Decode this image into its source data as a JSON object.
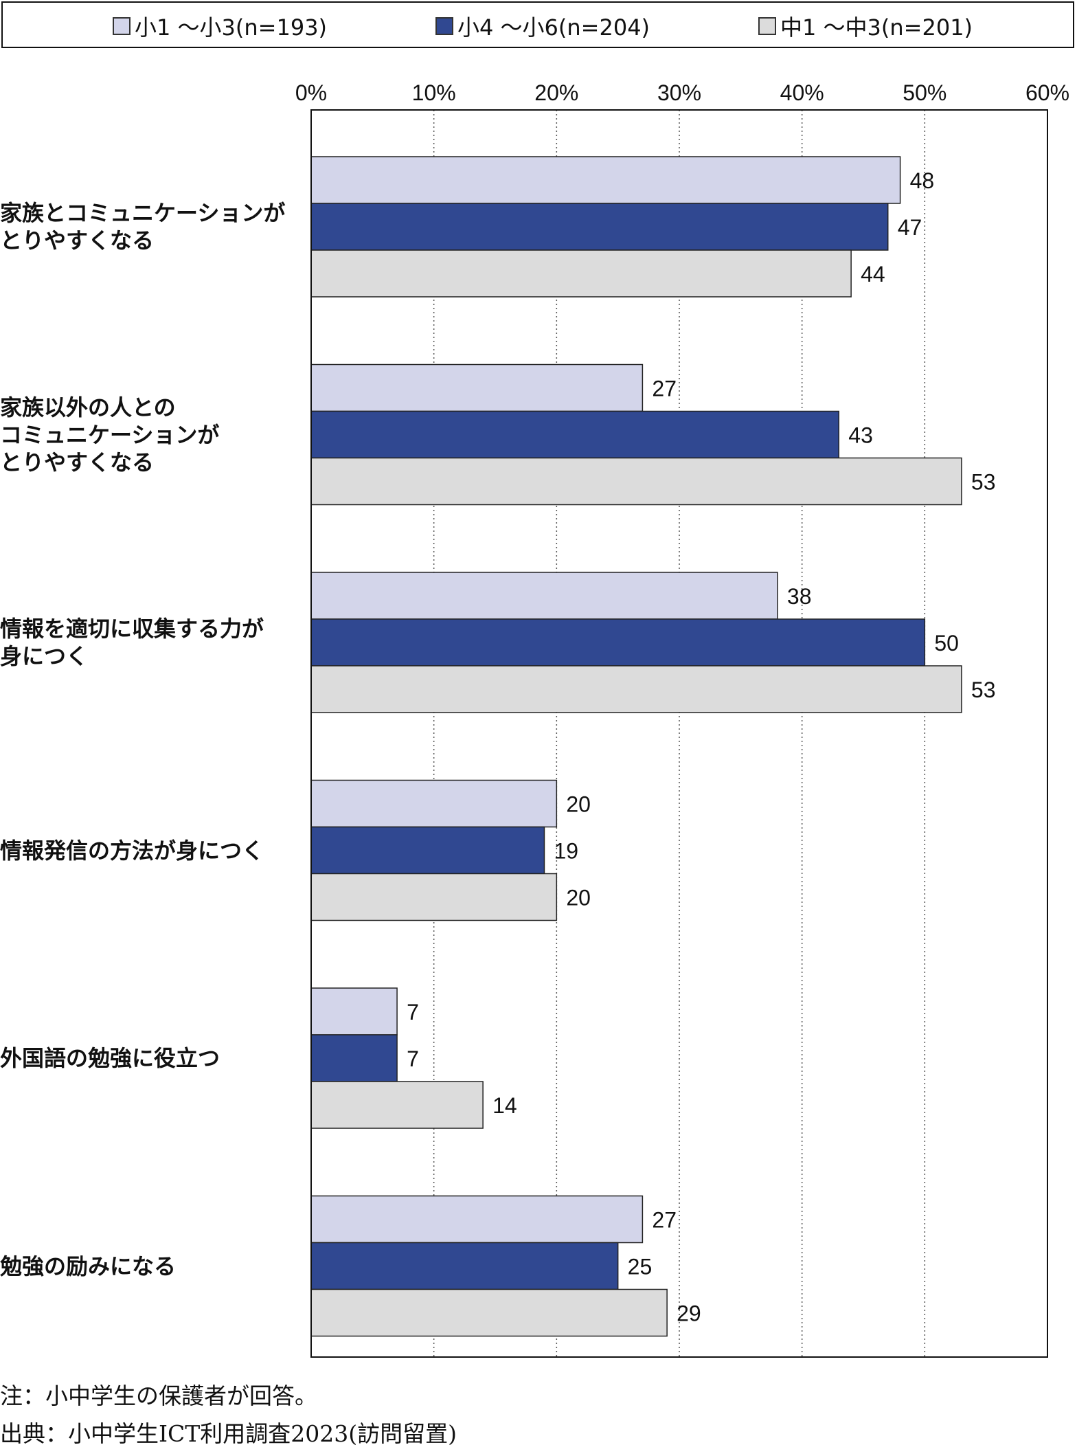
{
  "legend": {
    "items": [
      {
        "label": "小1 ～小3(n=193)",
        "color": "#d3d5ea"
      },
      {
        "label": "小4 ～小6(n=204)",
        "color": "#304891"
      },
      {
        "label": "中1 ～中3(n=201)",
        "color": "#dcdcdc"
      }
    ]
  },
  "chart_data": {
    "type": "bar",
    "orientation": "horizontal",
    "categories": [
      "家族とコミュニケーションが\nとりやすくなる",
      "家族以外の人との\nコミュニケーションが\nとりやすくなる",
      "情報を適切に収集する力が\n身につく",
      "情報発信の方法が身につく",
      "外国語の勉強に役立つ",
      "勉強の励みになる"
    ],
    "series": [
      {
        "name": "小1 ～小3(n=193)",
        "values": [
          48,
          27,
          38,
          20,
          7,
          27
        ],
        "labels": [
          "48",
          "27",
          "38",
          "20",
          "7",
          "27"
        ]
      },
      {
        "name": "小4 ～小6(n=204)",
        "values": [
          47,
          43,
          50,
          19,
          7,
          25
        ],
        "labels": [
          "47",
          "43",
          "50",
          "19",
          "7",
          "25"
        ]
      },
      {
        "name": "中1 ～中3(n=201)",
        "values": [
          44,
          53,
          53,
          20,
          14,
          29
        ],
        "labels": [
          "44",
          "53",
          "53",
          "20",
          "14",
          "29"
        ]
      }
    ],
    "xlim": [
      0,
      60
    ],
    "xticks": [
      0,
      10,
      20,
      30,
      40,
      50,
      60
    ],
    "xtick_labels": [
      "0%",
      "10%",
      "20%",
      "30%",
      "40%",
      "50%",
      "60%"
    ],
    "grid": "vertical-dotted",
    "legend_position": "top"
  },
  "notes": {
    "note": "注：小中学生の保護者が回答。",
    "source": "出典：小中学生ICT利用調査2023(訪問留置)"
  }
}
